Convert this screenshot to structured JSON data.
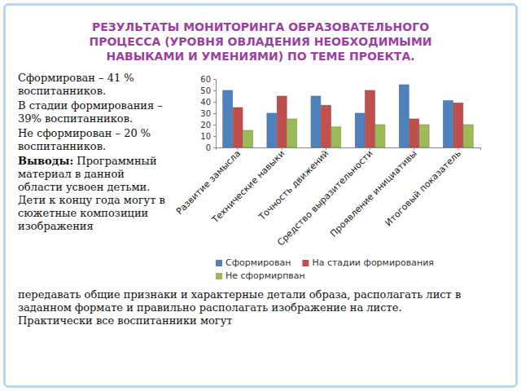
{
  "chart_data": {
    "type": "bar",
    "title": "РЕЗУЛЬТАТЫ МОНИТОРИНГА ОБРАЗОВАТЕЛЬНОГО ПРОЦЕССА (УРОВНЯ ОВЛАДЕНИЯ НЕОБХОДИМЫМИ НАВЫКАМИ И УМЕНИЯМИ) ПО ТЕМЕ ПРОЕКТА.",
    "categories": [
      "Развитие замысла",
      "Технические навыки",
      "Точность движений",
      "Средство выразительности",
      "Проявление инициативы",
      "Итоговый показатель"
    ],
    "series": [
      {
        "name": "Сформирован",
        "color": "#4f81bd",
        "values": [
          50,
          30,
          45,
          30,
          55,
          41
        ]
      },
      {
        "name": "На стадии формирования",
        "color": "#c0504d",
        "values": [
          35,
          45,
          37,
          50,
          25,
          39
        ]
      },
      {
        "name": "Не сформирпван",
        "color": "#9bbb59",
        "values": [
          15,
          25,
          18,
          20,
          20,
          20
        ]
      }
    ],
    "ylim": [
      0,
      60
    ],
    "yticks": [
      0,
      10,
      20,
      30,
      40,
      50,
      60
    ],
    "grid": false,
    "legend": "bottom"
  },
  "slide_text": {
    "summary": [
      "Сформирован – 41 % воспитанников.",
      "В стадии формирования – 39% воспитанников.",
      "Не сформирован – 20 % воспитанников."
    ],
    "conclusion_label": "Выводы:",
    "conclusion": "Программный материал в данной области усвоен детьми. Дети к концу года могут в сюжетные композиции изображения",
    "continuation": "передавать общие признаки и характерные детали образа, располагать лист в заданном формате и правильно располагать изображение на листе.",
    "closing": "Практически все воспитанники могут"
  }
}
